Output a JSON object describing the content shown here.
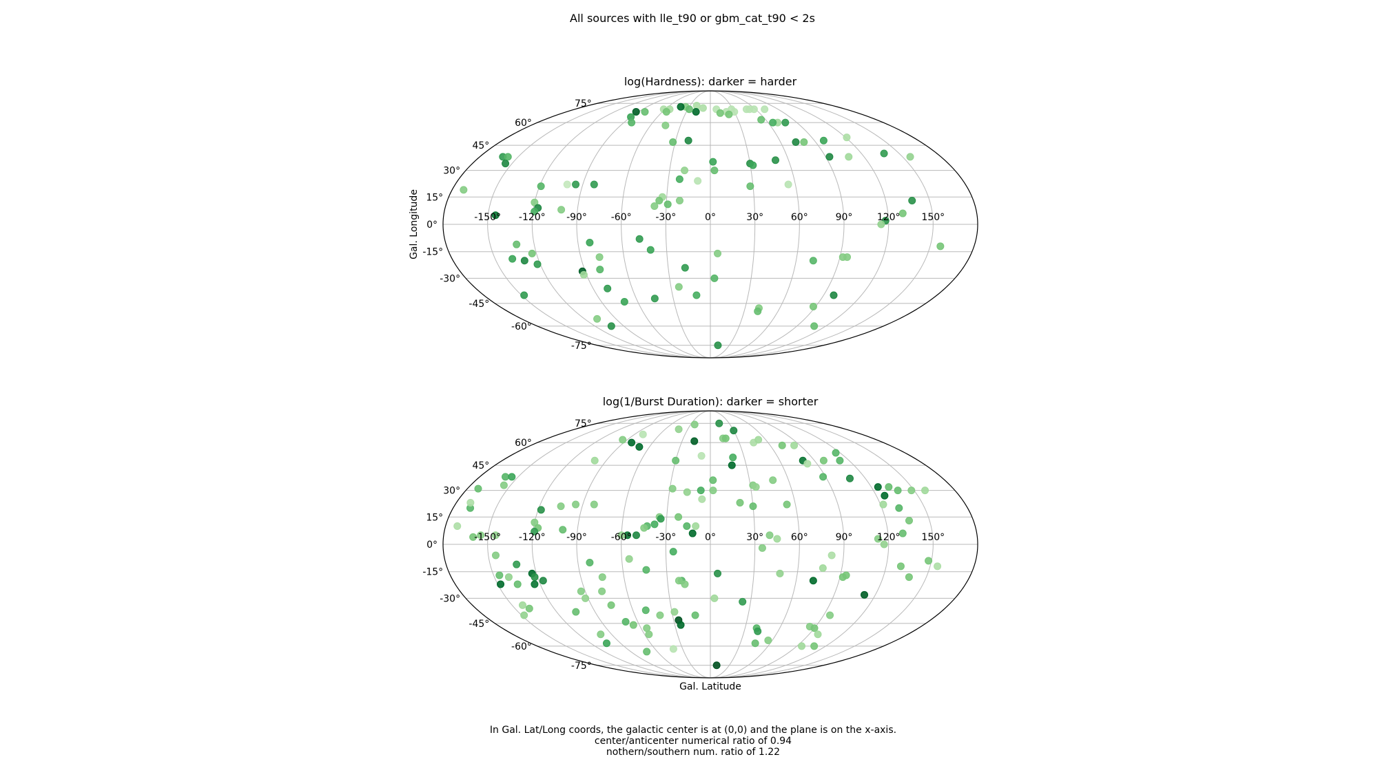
{
  "figure": {
    "suptitle": "All sources with lle_t90 or gbm_cat_t90 < 2s",
    "footer_lines": [
      "In Gal. Lat/Long coords, the galactic center is at (0,0) and the plane is on the x-axis.",
      "center/anticenter numerical ratio of 0.94",
      "nothern/southern num. ratio of 1.22"
    ]
  },
  "colors": {
    "grid": "#b8b8b8",
    "outline": "#000000",
    "cmap": "Greens"
  },
  "chart_data": [
    {
      "type": "scatter",
      "projection": "mollweide",
      "title": "log(Hardness): darker  = harder",
      "xlabel": "",
      "ylabel": "Gal. Longitude",
      "xlim": [
        -180,
        180
      ],
      "ylim": [
        -90,
        90
      ],
      "grid": true,
      "x_tick_labels": [
        "-150°",
        "-120°",
        "-90°",
        "-60°",
        "-30°",
        "0°",
        "30°",
        "60°",
        "90°",
        "120°",
        "150°"
      ],
      "y_tick_labels": [
        "-75°",
        "-60°",
        "-45°",
        "-30°",
        "-15°",
        "0°",
        "15°",
        "30°",
        "45°",
        "60°",
        "75°"
      ],
      "points": [
        [
          -93,
          68,
          0.9
        ],
        [
          -82,
          68,
          0.4
        ],
        [
          -62,
          70,
          0.15
        ],
        [
          -54,
          70,
          0.15
        ],
        [
          -35,
          72,
          0.3
        ],
        [
          -20,
          73,
          0.15
        ],
        [
          -10,
          71,
          0.15
        ],
        [
          -42,
          72,
          0.85
        ],
        [
          -18,
          68,
          0.85
        ],
        [
          -28,
          70,
          0.4
        ],
        [
          -55,
          68,
          0.35
        ],
        [
          -90,
          64,
          0.55
        ],
        [
          -82,
          60,
          0.45
        ],
        [
          -45,
          58,
          0.3
        ],
        [
          8,
          70,
          0.1
        ],
        [
          20,
          68,
          0.1
        ],
        [
          28,
          70,
          0.1
        ],
        [
          30,
          68,
          0.1
        ],
        [
          48,
          70,
          0.1
        ],
        [
          52,
          70,
          0.1
        ],
        [
          58,
          70,
          0.1
        ],
        [
          72,
          70,
          0.1
        ],
        [
          12,
          67,
          0.35
        ],
        [
          22,
          66,
          0.35
        ],
        [
          55,
          62,
          0.4
        ],
        [
          70,
          60,
          0.2
        ],
        [
          78,
          60,
          0.6
        ],
        [
          65,
          60,
          0.5
        ],
        [
          -162,
          38,
          0.6
        ],
        [
          -158,
          38,
          0.45
        ],
        [
          -155,
          34,
          0.7
        ],
        [
          -172,
          19,
          0.3
        ],
        [
          -119,
          21,
          0.45
        ],
        [
          -101,
          22,
          0.05
        ],
        [
          -95,
          22,
          0.6
        ],
        [
          -82,
          22,
          0.6
        ],
        [
          -32,
          47,
          0.4
        ],
        [
          -19,
          48,
          0.7
        ],
        [
          -19,
          30,
          0.25
        ],
        [
          -22,
          25,
          0.5
        ],
        [
          -9,
          24,
          0.1
        ],
        [
          2,
          35,
          0.55
        ],
        [
          3,
          30,
          0.4
        ],
        [
          30,
          34,
          0.65
        ],
        [
          32,
          33,
          0.55
        ],
        [
          50,
          36,
          0.65
        ],
        [
          73,
          47,
          0.7
        ],
        [
          80,
          47,
          0.35
        ],
        [
          98,
          48,
          0.55
        ],
        [
          93,
          38,
          0.7
        ],
        [
          108,
          38,
          0.2
        ],
        [
          121,
          50,
          0.15
        ],
        [
          138,
          40,
          0.6
        ],
        [
          156,
          38,
          0.25
        ],
        [
          -33,
          15,
          0.2
        ],
        [
          -35,
          13,
          0.35
        ],
        [
          -38,
          10,
          0.3
        ],
        [
          -21,
          13,
          0.3
        ],
        [
          -29,
          11,
          0.4
        ],
        [
          28,
          21,
          0.4
        ],
        [
          55,
          22,
          0.1
        ],
        [
          -145,
          5,
          0.8
        ],
        [
          -120,
          12,
          0.3
        ],
        [
          -117,
          9,
          0.7
        ],
        [
          -119,
          7,
          0.5
        ],
        [
          -101,
          8,
          0.3
        ],
        [
          138,
          13,
          0.65
        ],
        [
          130,
          6,
          0.35
        ],
        [
          118,
          2,
          0.65
        ],
        [
          115,
          0,
          0.25
        ],
        [
          -132,
          -11,
          0.4
        ],
        [
          -123,
          -16,
          0.35
        ],
        [
          -138,
          -19,
          0.55
        ],
        [
          -130,
          -20,
          0.7
        ],
        [
          -122,
          -22,
          0.6
        ],
        [
          -48,
          -8,
          0.6
        ],
        [
          -41,
          -14,
          0.55
        ],
        [
          -82,
          -10,
          0.55
        ],
        [
          -77,
          -18,
          0.3
        ],
        [
          -92,
          -26,
          0.9
        ],
        [
          -92,
          -28,
          0.2
        ],
        [
          -79,
          -25,
          0.45
        ],
        [
          -79,
          -36,
          0.6
        ],
        [
          -71,
          -44,
          0.55
        ],
        [
          -45,
          -42,
          0.6
        ],
        [
          -24,
          -35,
          0.3
        ],
        [
          -11,
          -40,
          0.5
        ],
        [
          -18,
          -24,
          0.6
        ],
        [
          5,
          -16,
          0.3
        ],
        [
          3,
          -30,
          0.45
        ],
        [
          42,
          -48,
          0.3
        ],
        [
          42,
          -50,
          0.4
        ],
        [
          72,
          -20,
          0.45
        ],
        [
          95,
          -18,
          0.3
        ],
        [
          92,
          -18,
          0.3
        ],
        [
          98,
          -40,
          0.7
        ],
        [
          88,
          -47,
          0.35
        ],
        [
          108,
          -60,
          0.4
        ],
        [
          157,
          -12,
          0.35
        ],
        [
          -148,
          -40,
          0.6
        ],
        [
          -108,
          -55,
          0.3
        ],
        [
          -103,
          -60,
          0.65
        ],
        [
          12,
          -75,
          0.65
        ]
      ]
    },
    {
      "type": "scatter",
      "projection": "mollweide",
      "title": "log(1/Burst Duration): darker = shorter",
      "xlabel": "Gal. Latitude",
      "ylabel": "",
      "xlim": [
        -180,
        180
      ],
      "ylim": [
        -90,
        90
      ],
      "grid": true,
      "x_tick_labels": [
        "-150°",
        "-120°",
        "-90°",
        "-60°",
        "-30°",
        "0°",
        "30°",
        "60°",
        "90°",
        "120°",
        "150°"
      ],
      "y_tick_labels": [
        "-75°",
        "-60°",
        "-45°",
        "-30°",
        "-15°",
        "0°",
        "15°",
        "30°",
        "45°",
        "60°",
        "75°"
      ],
      "points": [
        [
          -95,
          62,
          0.3
        ],
        [
          -80,
          66,
          0.1
        ],
        [
          -82,
          60,
          0.85
        ],
        [
          -70,
          57,
          0.85
        ],
        [
          -42,
          70,
          0.25
        ],
        [
          -24,
          74,
          0.3
        ],
        [
          -17,
          61,
          0.9
        ],
        [
          -8,
          51,
          0.1
        ],
        [
          14,
          63,
          0.3
        ],
        [
          17,
          63,
          0.35
        ],
        [
          14,
          75,
          0.65
        ],
        [
          30,
          69,
          0.7
        ],
        [
          45,
          60,
          0.15
        ],
        [
          52,
          62,
          0.2
        ],
        [
          72,
          58,
          0.35
        ],
        [
          84,
          58,
          0.2
        ],
        [
          80,
          48,
          0.8
        ],
        [
          82,
          46,
          0.15
        ],
        [
          98,
          48,
          0.35
        ],
        [
          112,
          48,
          0.45
        ],
        [
          116,
          53,
          0.45
        ],
        [
          -100,
          48,
          0.2
        ],
        [
          -160,
          38,
          0.45
        ],
        [
          -155,
          38,
          0.55
        ],
        [
          -155,
          33,
          0.3
        ],
        [
          -172,
          31,
          0.4
        ],
        [
          -168,
          20,
          0.45
        ],
        [
          -172,
          10,
          0.15
        ],
        [
          -170,
          23,
          0.15
        ],
        [
          -118,
          19,
          0.65
        ],
        [
          -95,
          22,
          0.3
        ],
        [
          -82,
          22,
          0.3
        ],
        [
          -105,
          21,
          0.3
        ],
        [
          -30,
          48,
          0.4
        ],
        [
          -28,
          31,
          0.3
        ],
        [
          -17,
          29,
          0.25
        ],
        [
          -7,
          30,
          0.5
        ],
        [
          2,
          36,
          0.4
        ],
        [
          2,
          30,
          0.3
        ],
        [
          -6,
          25,
          0.15
        ],
        [
          21,
          23,
          0.35
        ],
        [
          32,
          33,
          0.3
        ],
        [
          34,
          32,
          0.25
        ],
        [
          48,
          36,
          0.3
        ],
        [
          30,
          21,
          0.4
        ],
        [
          54,
          22,
          0.35
        ],
        [
          88,
          38,
          0.45
        ],
        [
          108,
          37,
          0.7
        ],
        [
          125,
          32,
          0.85
        ],
        [
          133,
          32,
          0.4
        ],
        [
          138,
          30,
          0.4
        ],
        [
          148,
          30,
          0.3
        ],
        [
          158,
          30,
          0.2
        ],
        [
          126,
          27,
          0.85
        ],
        [
          122,
          22,
          0.2
        ],
        [
          132,
          20,
          0.45
        ],
        [
          136,
          13,
          0.35
        ],
        [
          18,
          45,
          0.85
        ],
        [
          20,
          50,
          0.5
        ],
        [
          -35,
          15,
          0.3
        ],
        [
          -38,
          11,
          0.5
        ],
        [
          -43,
          10,
          0.45
        ],
        [
          -45,
          9,
          0.3
        ],
        [
          -34,
          14,
          0.6
        ],
        [
          -16,
          10,
          0.45
        ],
        [
          -10,
          10,
          0.2
        ],
        [
          -22,
          15,
          0.35
        ],
        [
          -12,
          6,
          0.85
        ],
        [
          -50,
          5,
          0.7
        ],
        [
          -56,
          5,
          0.8
        ],
        [
          -60,
          5,
          0.25
        ],
        [
          -120,
          12,
          0.3
        ],
        [
          -117,
          9,
          0.35
        ],
        [
          -119,
          7,
          0.6
        ],
        [
          -100,
          8,
          0.4
        ],
        [
          -145,
          5,
          0.25
        ],
        [
          -160,
          4,
          0.35
        ],
        [
          -155,
          5,
          0.3
        ],
        [
          40,
          5,
          0.3
        ],
        [
          45,
          3,
          0.2
        ],
        [
          113,
          3,
          0.3
        ],
        [
          130,
          6,
          0.4
        ],
        [
          117,
          0,
          0.25
        ],
        [
          -145,
          -6,
          0.3
        ],
        [
          -132,
          -11,
          0.6
        ],
        [
          -123,
          -16,
          0.85
        ],
        [
          -122,
          -18,
          0.65
        ],
        [
          -117,
          -20,
          0.7
        ],
        [
          -146,
          -17,
          0.4
        ],
        [
          -136,
          -22,
          0.4
        ],
        [
          -148,
          -22,
          0.85
        ],
        [
          -140,
          -18,
          0.25
        ],
        [
          -124,
          -22,
          0.8
        ],
        [
          -82,
          -10,
          0.45
        ],
        [
          -75,
          -18,
          0.3
        ],
        [
          -78,
          -26,
          0.3
        ],
        [
          -93,
          -26,
          0.3
        ],
        [
          -92,
          -30,
          0.25
        ],
        [
          -55,
          -8,
          0.25
        ],
        [
          -44,
          -14,
          0.45
        ],
        [
          -20,
          -20,
          0.45
        ],
        [
          -18,
          -22,
          0.3
        ],
        [
          -25,
          -4,
          0.5
        ],
        [
          5,
          -16,
          0.65
        ],
        [
          3,
          -30,
          0.2
        ],
        [
          24,
          -32,
          0.6
        ],
        [
          -142,
          -34,
          0.2
        ],
        [
          -148,
          -40,
          0.25
        ],
        [
          -139,
          -36,
          0.35
        ],
        [
          -105,
          -38,
          0.4
        ],
        [
          -75,
          -34,
          0.35
        ],
        [
          -70,
          -44,
          0.45
        ],
        [
          -65,
          -46,
          0.35
        ],
        [
          -55,
          -48,
          0.3
        ],
        [
          -50,
          -37,
          0.45
        ],
        [
          -40,
          -40,
          0.3
        ],
        [
          -28,
          -38,
          0.25
        ],
        [
          -12,
          -40,
          0.4
        ],
        [
          -26,
          -43,
          0.95
        ],
        [
          -25,
          -46,
          0.85
        ],
        [
          -22,
          -20,
          0.3
        ],
        [
          40,
          -48,
          0.45
        ],
        [
          42,
          -50,
          0.6
        ],
        [
          72,
          -20,
          0.85
        ],
        [
          92,
          -18,
          0.35
        ],
        [
          94,
          -17,
          0.35
        ],
        [
          95,
          -40,
          0.3
        ],
        [
          85,
          -47,
          0.3
        ],
        [
          108,
          -60,
          0.35
        ],
        [
          112,
          -28,
          0.9
        ],
        [
          155,
          -12,
          0.15
        ],
        [
          148,
          -9,
          0.35
        ],
        [
          138,
          -18,
          0.35
        ],
        [
          130,
          -12,
          0.35
        ],
        [
          35,
          -2,
          0.3
        ],
        [
          48,
          -16,
          0.25
        ],
        [
          77,
          -13,
          0.2
        ],
        [
          82,
          -6,
          0.15
        ],
        [
          90,
          -48,
          0.35
        ],
        [
          98,
          -52,
          0.2
        ],
        [
          56,
          -56,
          0.3
        ],
        [
          45,
          -58,
          0.4
        ],
        [
          -104,
          -58,
          0.55
        ],
        [
          -100,
          -52,
          0.3
        ],
        [
          -72,
          -64,
          0.4
        ],
        [
          -56,
          -52,
          0.3
        ],
        [
          -40,
          -62,
          0.1
        ],
        [
          10,
          -75,
          0.95
        ],
        [
          95,
          -60,
          0.2
        ]
      ]
    }
  ]
}
